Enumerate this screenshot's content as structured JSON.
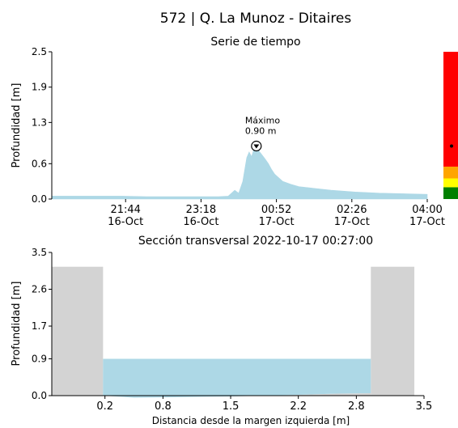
{
  "figure": {
    "title": "572 | Q. La Munoz - Ditaires"
  },
  "chart_data": [
    {
      "type": "area",
      "title": "Serie de tiempo",
      "ylabel": "Profundidad [m]",
      "xlabel": "",
      "ylim": [
        0,
        2.5
      ],
      "yticks": [
        0.0,
        0.6,
        1.3,
        1.9,
        2.5
      ],
      "ytick_labels": [
        "0.0",
        "0.6",
        "1.3",
        "1.9",
        "2.5"
      ],
      "xlim": [
        "2022-10-16 20:12",
        "2022-10-17 04:00"
      ],
      "xticks": [
        {
          "time": "2022-10-16 21:44",
          "line1": "21:44",
          "line2": "16-Oct"
        },
        {
          "time": "2022-10-16 23:18",
          "line1": "23:18",
          "line2": "16-Oct"
        },
        {
          "time": "2022-10-17 00:52",
          "line1": "00:52",
          "line2": "17-Oct"
        },
        {
          "time": "2022-10-17 02:26",
          "line1": "02:26",
          "line2": "17-Oct"
        },
        {
          "time": "2022-10-17 04:00",
          "line1": "04:00",
          "line2": "17-Oct"
        }
      ],
      "series": [
        {
          "color": "#add8e6",
          "points": [
            [
              "2022-10-16 20:12",
              0.05
            ],
            [
              "2022-10-16 20:40",
              0.05
            ],
            [
              "2022-10-16 21:10",
              0.05
            ],
            [
              "2022-10-16 21:40",
              0.05
            ],
            [
              "2022-10-16 22:10",
              0.04
            ],
            [
              "2022-10-16 22:40",
              0.04
            ],
            [
              "2022-10-16 23:10",
              0.04
            ],
            [
              "2022-10-16 23:40",
              0.04
            ],
            [
              "2022-10-16 23:52",
              0.05
            ],
            [
              "2022-10-17 00:00",
              0.15
            ],
            [
              "2022-10-17 00:05",
              0.1
            ],
            [
              "2022-10-17 00:10",
              0.3
            ],
            [
              "2022-10-17 00:15",
              0.7
            ],
            [
              "2022-10-17 00:18",
              0.8
            ],
            [
              "2022-10-17 00:21",
              0.72
            ],
            [
              "2022-10-17 00:24",
              0.85
            ],
            [
              "2022-10-17 00:27",
              0.9
            ],
            [
              "2022-10-17 00:30",
              0.82
            ],
            [
              "2022-10-17 00:34",
              0.75
            ],
            [
              "2022-10-17 00:38",
              0.68
            ],
            [
              "2022-10-17 00:42",
              0.6
            ],
            [
              "2022-10-17 00:46",
              0.5
            ],
            [
              "2022-10-17 00:50",
              0.42
            ],
            [
              "2022-10-17 00:55",
              0.36
            ],
            [
              "2022-10-17 01:00",
              0.3
            ],
            [
              "2022-10-17 01:10",
              0.25
            ],
            [
              "2022-10-17 01:20",
              0.21
            ],
            [
              "2022-10-17 01:40",
              0.18
            ],
            [
              "2022-10-17 02:00",
              0.15
            ],
            [
              "2022-10-17 02:30",
              0.12
            ],
            [
              "2022-10-17 03:00",
              0.1
            ],
            [
              "2022-10-17 03:30",
              0.09
            ],
            [
              "2022-10-17 04:00",
              0.08
            ]
          ]
        }
      ],
      "annotation": {
        "label": "Máximo",
        "value_text": "0.90 m",
        "time": "2022-10-17 00:27",
        "value": 0.9
      },
      "alert_scale": {
        "bands": [
          {
            "from": 0.0,
            "to": 0.2,
            "color": "#008000"
          },
          {
            "from": 0.2,
            "to": 0.35,
            "color": "#ffff00"
          },
          {
            "from": 0.35,
            "to": 0.55,
            "color": "#ffa500"
          },
          {
            "from": 0.55,
            "to": 2.5,
            "color": "#ff0000"
          }
        ],
        "marker_value": 0.9
      },
      "grid": false
    },
    {
      "type": "area",
      "title": "Sección transversal 2022-10-17 00:27:00",
      "xlabel": "Distancia desde la margen izquierda [m]",
      "ylabel": "Profundidad [m]",
      "xlim": [
        -0.35,
        3.5
      ],
      "ylim": [
        0,
        3.5
      ],
      "xticks": [
        0.2,
        0.8,
        1.5,
        2.2,
        2.8,
        3.5
      ],
      "xtick_labels": [
        "0.2",
        "0.8",
        "1.5",
        "2.2",
        "2.8",
        "3.5"
      ],
      "yticks": [
        0.0,
        0.9,
        1.7,
        2.6,
        3.5
      ],
      "ytick_labels": [
        "0.0",
        "0.9",
        "1.7",
        "2.6",
        "3.5"
      ],
      "bank_color": "#d3d3d3",
      "water_color": "#add8e6",
      "left_bank": {
        "x_from": -0.35,
        "x_to": 0.18,
        "height": 3.15
      },
      "right_bank": {
        "x_from": 2.95,
        "x_to": 3.4,
        "height": 3.15
      },
      "bed_profile": [
        [
          0.18,
          0.0
        ],
        [
          0.5,
          -0.05
        ],
        [
          0.9,
          -0.04
        ],
        [
          1.5,
          -0.02
        ],
        [
          2.2,
          0.02
        ],
        [
          2.6,
          0.05
        ],
        [
          2.95,
          0.06
        ]
      ],
      "water_level": 0.9,
      "grid": false
    }
  ]
}
